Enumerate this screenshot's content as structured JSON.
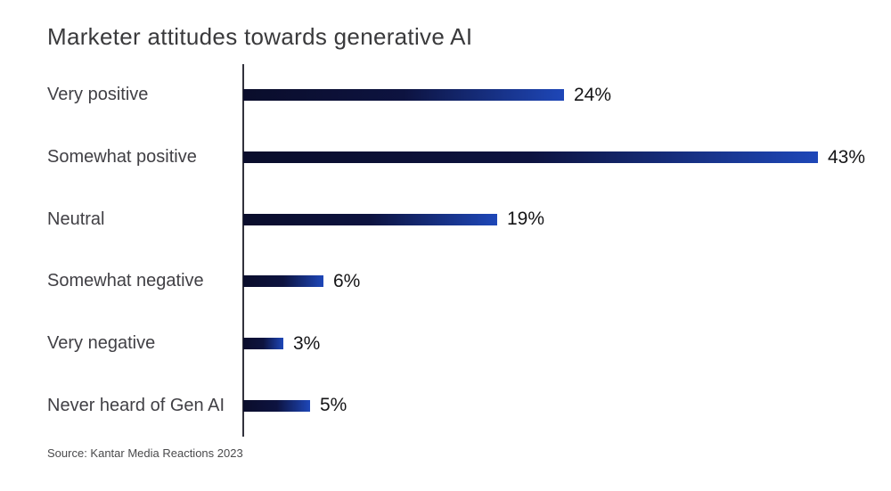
{
  "chart_data": {
    "type": "bar",
    "orientation": "horizontal",
    "title": "Marketer attitudes towards generative AI",
    "categories": [
      "Very positive",
      "Somewhat positive",
      "Neutral",
      "Somewhat negative",
      "Very negative",
      "Never heard of Gen AI"
    ],
    "values": [
      24,
      43,
      19,
      6,
      3,
      5
    ],
    "value_labels": [
      "24%",
      "43%",
      "19%",
      "6%",
      "3%",
      "5%"
    ],
    "unit": "%",
    "xlim": [
      0,
      48
    ],
    "grid": false,
    "legend": "none",
    "source": "Source: Kantar Media Reactions 2023",
    "colors": {
      "background": "#ffffff",
      "bar_gradient_start": "#0a0d2b",
      "bar_gradient_mid": "#0d1340",
      "bar_gradient_end": "#1e47b8",
      "axis": "#32323c",
      "title_text": "#3a3a3c",
      "category_text": "#414045",
      "value_text": "#151517",
      "source_text": "#4a4a4c"
    }
  }
}
